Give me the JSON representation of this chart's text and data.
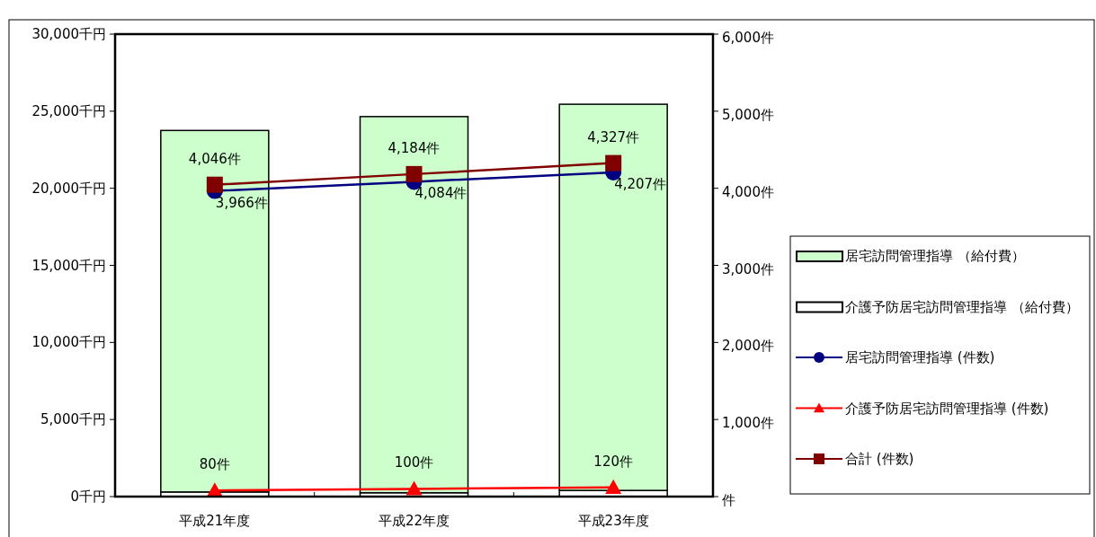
{
  "chart_data": {
    "type": "bar",
    "stacked": true,
    "categories": [
      "平成21年度",
      "平成22年度",
      "平成23年度"
    ],
    "series": [
      {
        "name": "介護予防居宅訪問管理指導 （給付費）",
        "color": "#ffffff",
        "values": [
          300,
          250,
          400
        ]
      },
      {
        "name": "居宅訪問管理指導 （給付費）",
        "color": "#ccffcc",
        "values": [
          23450,
          24400,
          25050
        ]
      },
      {
        "name": "居宅訪問管理指導 (件数)",
        "type": "line",
        "axis": "y2",
        "color": "#000080",
        "marker": "circle",
        "values": [
          3966,
          4084,
          4207
        ],
        "value_labels": [
          "3,966件",
          "4,084件",
          "4,207件"
        ]
      },
      {
        "name": "介護予防居宅訪問管理指導 (件数)",
        "type": "line",
        "axis": "y2",
        "color": "#ff0000",
        "marker": "triangle",
        "values": [
          80,
          100,
          120
        ],
        "value_labels": [
          "80件",
          "100件",
          "120件"
        ]
      },
      {
        "name": "合計 (件数)",
        "type": "line",
        "axis": "y2",
        "color": "#800000",
        "marker": "square",
        "values": [
          4046,
          4184,
          4327
        ],
        "value_labels": [
          "4,046件",
          "4,184件",
          "4,327件"
        ]
      }
    ],
    "ylim": [
      0,
      30000
    ],
    "yticks": [
      {
        "value": 0,
        "label": "0千円"
      },
      {
        "value": 5000,
        "label": "5,000千円"
      },
      {
        "value": 10000,
        "label": "10,000千円"
      },
      {
        "value": 15000,
        "label": "15,000千円"
      },
      {
        "value": 20000,
        "label": "20,000千円"
      },
      {
        "value": 25000,
        "label": "25,000千円"
      },
      {
        "value": 30000,
        "label": "30,000千円"
      }
    ],
    "y2lim": [
      0,
      6000
    ],
    "y2ticks": [
      {
        "value": 0,
        "label": "件"
      },
      {
        "value": 1000,
        "label": "1,000件"
      },
      {
        "value": 2000,
        "label": "2,000件"
      },
      {
        "value": 3000,
        "label": "3,000件"
      },
      {
        "value": 4000,
        "label": "4,000件"
      },
      {
        "value": 5000,
        "label": "5,000件"
      },
      {
        "value": 6000,
        "label": "6,000件"
      }
    ],
    "legend": "right",
    "grid": false
  }
}
